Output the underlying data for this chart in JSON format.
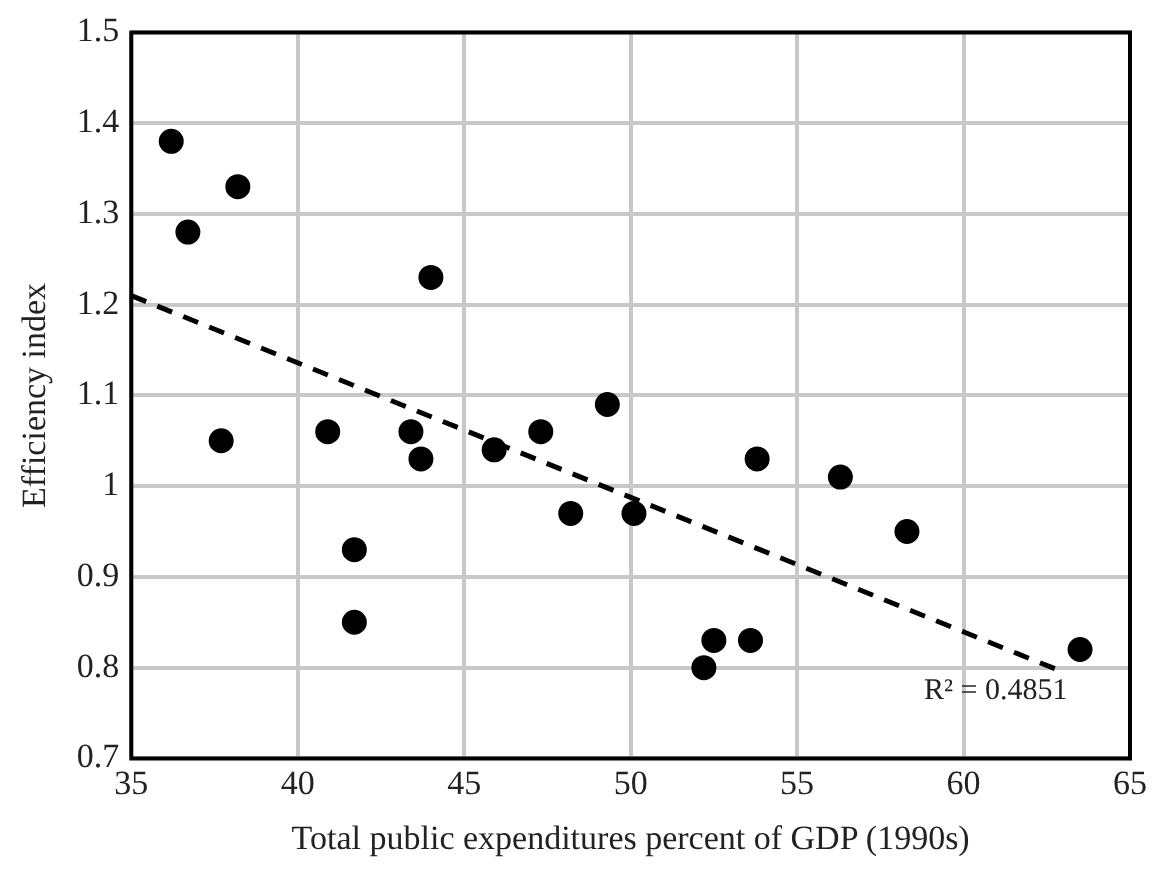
{
  "chart_data": {
    "type": "scatter",
    "xlabel": "Total public expenditures percent of GDP (1990s)",
    "ylabel": "Efficiency index",
    "x": [
      36.2,
      36.7,
      38.2,
      37.7,
      40.9,
      41.7,
      41.7,
      43.4,
      43.7,
      44.0,
      45.9,
      47.3,
      48.2,
      49.3,
      50.1,
      52.2,
      52.5,
      53.6,
      53.8,
      56.3,
      58.3,
      63.5
    ],
    "series": [
      {
        "type": "scatter",
        "color": "#000000",
        "marker": "circle",
        "values": [
          1.38,
          1.28,
          1.33,
          1.05,
          1.06,
          0.93,
          0.85,
          1.06,
          1.03,
          1.23,
          1.04,
          1.06,
          0.97,
          1.09,
          0.97,
          0.8,
          0.83,
          0.83,
          1.03,
          1.01,
          0.95,
          0.82
        ]
      },
      {
        "type": "line",
        "color": "#000000",
        "marker": "none",
        "line_style": "dashed",
        "x": [
          35,
          63
        ],
        "values": [
          1.21,
          0.795
        ]
      }
    ],
    "annotations": [
      "R² = 0.4851"
    ],
    "xlim": [
      35,
      65
    ],
    "xticks": [
      35,
      40,
      45,
      50,
      55,
      60,
      65
    ],
    "ylim": [
      0.7,
      1.5
    ],
    "yticks": [
      0.7,
      0.8,
      0.9,
      1,
      1.1,
      1.2,
      1.3,
      1.4,
      1.5
    ],
    "grid": true,
    "legend": false
  }
}
